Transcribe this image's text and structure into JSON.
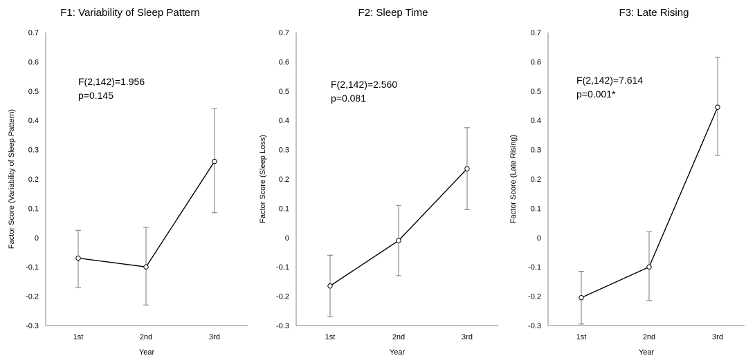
{
  "chart_data": [
    {
      "type": "line",
      "title": "F1: Variability of Sleep Pattern",
      "xlabel": "Year",
      "ylabel": "Factor Score (Variability of Sleep Pattern)",
      "categories": [
        "1st",
        "2nd",
        "3rd"
      ],
      "values": [
        -0.07,
        -0.1,
        0.26
      ],
      "error_low": [
        -0.17,
        -0.23,
        0.085
      ],
      "error_high": [
        0.025,
        0.035,
        0.44
      ],
      "ylim": [
        -0.3,
        0.7
      ],
      "yticks": [
        "0.7",
        "0.6",
        "0.5",
        "0.4",
        "0.3",
        "0.2",
        "0.1",
        "0",
        "-0.1",
        "-0.2",
        "-0.3"
      ],
      "annotation": [
        "F(2,142)=1.956",
        "p=0.145"
      ],
      "grid": false,
      "colors": {
        "line": "#000000",
        "marker_fill": "#ffffff",
        "error_bar": "#777777"
      }
    },
    {
      "type": "line",
      "title": "F2: Sleep Time",
      "xlabel": "Year",
      "ylabel": "Factor Score (Sleep Loss)",
      "categories": [
        "1st",
        "2nd",
        "3rd"
      ],
      "values": [
        -0.165,
        -0.01,
        0.235
      ],
      "error_low": [
        -0.27,
        -0.13,
        0.095
      ],
      "error_high": [
        -0.06,
        0.11,
        0.375
      ],
      "ylim": [
        -0.3,
        0.7
      ],
      "yticks": [
        "0.7",
        "0.6",
        "0.5",
        "0.4",
        "0.3",
        "0.2",
        "0.1",
        "0",
        "-0.1",
        "-0.2",
        "-0.3"
      ],
      "annotation": [
        "F(2,142)=2.560",
        "p=0.081"
      ],
      "grid": false,
      "colors": {
        "line": "#000000",
        "marker_fill": "#ffffff",
        "error_bar": "#777777"
      }
    },
    {
      "type": "line",
      "title": "F3: Late Rising",
      "xlabel": "Year",
      "ylabel": "Factor Score (Late Rising)",
      "categories": [
        "1st",
        "2nd",
        "3rd"
      ],
      "values": [
        -0.205,
        -0.1,
        0.445
      ],
      "error_low": [
        -0.295,
        -0.215,
        0.28
      ],
      "error_high": [
        -0.115,
        0.02,
        0.615
      ],
      "ylim": [
        -0.3,
        0.7
      ],
      "yticks": [
        "0.7",
        "0.6",
        "0.5",
        "0.4",
        "0.3",
        "0.2",
        "0.1",
        "0",
        "-0.1",
        "-0.2",
        "-0.3"
      ],
      "annotation": [
        "F(2,142)=7.614",
        "p=0.001*"
      ],
      "grid": false,
      "colors": {
        "line": "#000000",
        "marker_fill": "#ffffff",
        "error_bar": "#777777"
      }
    }
  ]
}
